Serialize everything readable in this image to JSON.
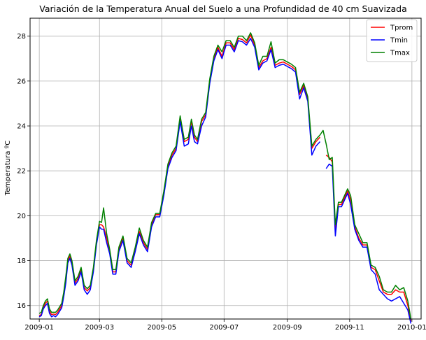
{
  "chart_data": {
    "type": "line",
    "title": "Variación de la Temperatura Anual del Suelo a una Profundidad de 40 cm Suavizada",
    "xlabel": "",
    "ylabel": "Temperatura ºC",
    "xlim": [
      "2008-12-23",
      "2010-01-10"
    ],
    "ylim": [
      15.4,
      28.8
    ],
    "grid": true,
    "legend_position": "top-right",
    "x_ticks": [
      {
        "date": "2009-01-01",
        "label": "2009-01"
      },
      {
        "date": "2009-03-01",
        "label": "2009-03"
      },
      {
        "date": "2009-05-01",
        "label": "2009-05"
      },
      {
        "date": "2009-07-01",
        "label": "2009-07"
      },
      {
        "date": "2009-09-01",
        "label": "2009-09"
      },
      {
        "date": "2009-11-01",
        "label": "2009-11"
      },
      {
        "date": "2010-01-01",
        "label": "2010-01"
      }
    ],
    "y_ticks": [
      16,
      18,
      20,
      22,
      24,
      26,
      28
    ],
    "x": [
      "2009-01-01",
      "2009-01-03",
      "2009-01-05",
      "2009-01-07",
      "2009-01-09",
      "2009-01-11",
      "2009-01-13",
      "2009-01-15",
      "2009-01-17",
      "2009-01-19",
      "2009-01-21",
      "2009-01-23",
      "2009-01-25",
      "2009-01-27",
      "2009-01-29",
      "2009-01-31",
      "2009-02-02",
      "2009-02-05",
      "2009-02-08",
      "2009-02-11",
      "2009-02-14",
      "2009-02-17",
      "2009-02-20",
      "2009-02-23",
      "2009-02-26",
      "2009-03-01",
      "2009-03-03",
      "2009-03-05",
      "2009-03-08",
      "2009-03-11",
      "2009-03-14",
      "2009-03-17",
      "2009-03-20",
      "2009-03-24",
      "2009-03-28",
      "2009-04-01",
      "2009-04-05",
      "2009-04-09",
      "2009-04-13",
      "2009-04-17",
      "2009-04-21",
      "2009-04-25",
      "2009-04-29",
      "2009-05-03",
      "2009-05-07",
      "2009-05-11",
      "2009-05-15",
      "2009-05-19",
      "2009-05-23",
      "2009-05-27",
      "2009-05-30",
      "2009-06-02",
      "2009-06-05",
      "2009-06-09",
      "2009-06-13",
      "2009-06-17",
      "2009-06-21",
      "2009-06-25",
      "2009-06-29",
      "2009-07-03",
      "2009-07-07",
      "2009-07-11",
      "2009-07-15",
      "2009-07-19",
      "2009-07-23",
      "2009-07-27",
      "2009-07-31",
      "2009-08-04",
      "2009-08-08",
      "2009-08-12",
      "2009-08-16",
      "2009-08-20",
      "2009-08-24",
      "2009-08-28",
      "2009-09-01",
      "2009-09-05",
      "2009-09-09",
      "2009-09-13",
      "2009-09-17",
      "2009-09-21",
      "2009-09-25",
      "2009-09-29",
      "2009-10-03",
      "2009-10-06",
      "2009-10-09",
      "2009-10-12",
      "2009-10-15",
      "2009-10-18",
      "2009-10-21",
      "2009-10-24",
      "2009-10-27",
      "2009-10-30",
      "2009-11-02",
      "2009-11-06",
      "2009-11-10",
      "2009-11-14",
      "2009-11-18",
      "2009-11-22",
      "2009-11-26",
      "2009-11-30",
      "2009-12-04",
      "2009-12-08",
      "2009-12-12",
      "2009-12-16",
      "2009-12-20",
      "2009-12-24",
      "2009-12-28",
      "2009-12-31"
    ],
    "series": [
      {
        "name": "Tprom",
        "color": "#ff0000",
        "values": [
          15.55,
          15.6,
          15.9,
          16.1,
          16.2,
          15.75,
          15.6,
          15.62,
          15.6,
          15.7,
          15.85,
          16.0,
          16.5,
          17.2,
          18.0,
          18.2,
          17.9,
          17.0,
          17.2,
          17.6,
          16.8,
          16.65,
          16.8,
          17.6,
          18.8,
          19.6,
          19.6,
          19.5,
          19.0,
          18.4,
          17.5,
          17.5,
          18.5,
          19.0,
          18.0,
          17.8,
          18.5,
          19.3,
          18.8,
          18.5,
          19.6,
          20.05,
          20.05,
          21.0,
          22.2,
          22.7,
          23.0,
          24.3,
          23.3,
          23.4,
          24.2,
          23.5,
          23.3,
          24.2,
          24.5,
          26.0,
          27.0,
          27.5,
          27.1,
          27.7,
          27.7,
          27.4,
          27.9,
          27.85,
          27.7,
          28.05,
          27.6,
          26.6,
          26.9,
          27.0,
          27.5,
          26.7,
          26.8,
          26.85,
          26.75,
          26.65,
          26.5,
          25.4,
          25.8,
          25.2,
          23.0,
          23.3,
          23.5,
          null,
          22.7,
          22.6,
          22.4,
          19.4,
          20.5,
          20.5,
          20.8,
          21.1,
          20.7,
          19.5,
          19.0,
          18.7,
          18.7,
          17.7,
          17.6,
          17.1,
          16.6,
          16.5,
          16.5,
          16.7,
          16.6,
          16.6,
          16.0,
          15.3
        ]
      },
      {
        "name": "Tmin",
        "color": "#0000ff",
        "values": [
          15.5,
          15.55,
          15.85,
          16.0,
          16.1,
          15.65,
          15.5,
          15.55,
          15.5,
          15.6,
          15.75,
          15.9,
          16.4,
          17.0,
          17.9,
          18.1,
          17.8,
          16.9,
          17.1,
          17.5,
          16.7,
          16.5,
          16.7,
          17.5,
          18.7,
          19.5,
          19.4,
          19.4,
          18.8,
          18.3,
          17.4,
          17.4,
          18.4,
          18.9,
          17.9,
          17.7,
          18.4,
          19.2,
          18.7,
          18.4,
          19.5,
          19.95,
          19.95,
          20.9,
          22.1,
          22.6,
          22.9,
          24.2,
          23.1,
          23.2,
          24.0,
          23.3,
          23.2,
          24.0,
          24.4,
          25.9,
          26.9,
          27.4,
          27.0,
          27.6,
          27.6,
          27.3,
          27.8,
          27.75,
          27.6,
          27.9,
          27.5,
          26.5,
          26.8,
          26.9,
          27.4,
          26.6,
          26.7,
          26.75,
          26.65,
          26.55,
          26.4,
          25.2,
          25.7,
          25.1,
          22.7,
          23.1,
          23.3,
          null,
          22.1,
          22.3,
          22.2,
          19.1,
          20.4,
          20.4,
          20.7,
          21.0,
          20.5,
          19.4,
          18.9,
          18.6,
          18.6,
          17.6,
          17.4,
          16.7,
          16.5,
          16.3,
          16.2,
          16.3,
          16.4,
          16.1,
          15.8,
          15.2
        ]
      },
      {
        "name": "Tmax",
        "color": "#008000",
        "values": [
          15.65,
          15.7,
          16.0,
          16.2,
          16.3,
          15.85,
          15.7,
          15.7,
          15.7,
          15.8,
          15.95,
          16.1,
          16.6,
          17.3,
          18.1,
          18.3,
          18.0,
          17.1,
          17.3,
          17.7,
          16.9,
          16.75,
          16.9,
          17.7,
          18.9,
          19.75,
          19.7,
          20.35,
          19.2,
          18.5,
          17.6,
          17.6,
          18.6,
          19.1,
          18.1,
          17.9,
          18.6,
          19.45,
          18.9,
          18.6,
          19.7,
          20.1,
          20.1,
          21.1,
          22.3,
          22.8,
          23.1,
          24.45,
          23.4,
          23.5,
          24.3,
          23.6,
          23.4,
          24.3,
          24.6,
          26.1,
          27.1,
          27.6,
          27.3,
          27.8,
          27.8,
          27.5,
          28.0,
          28.0,
          27.8,
          28.15,
          27.7,
          26.7,
          27.1,
          27.1,
          27.75,
          26.8,
          26.95,
          26.95,
          26.85,
          26.75,
          26.6,
          25.5,
          25.9,
          25.3,
          23.1,
          23.4,
          23.6,
          23.8,
          23.2,
          22.5,
          22.6,
          19.6,
          20.6,
          20.6,
          20.9,
          21.2,
          20.9,
          19.6,
          19.2,
          18.8,
          18.8,
          17.8,
          17.7,
          17.3,
          16.7,
          16.6,
          16.6,
          16.9,
          16.7,
          16.8,
          16.2,
          15.4
        ]
      }
    ]
  }
}
